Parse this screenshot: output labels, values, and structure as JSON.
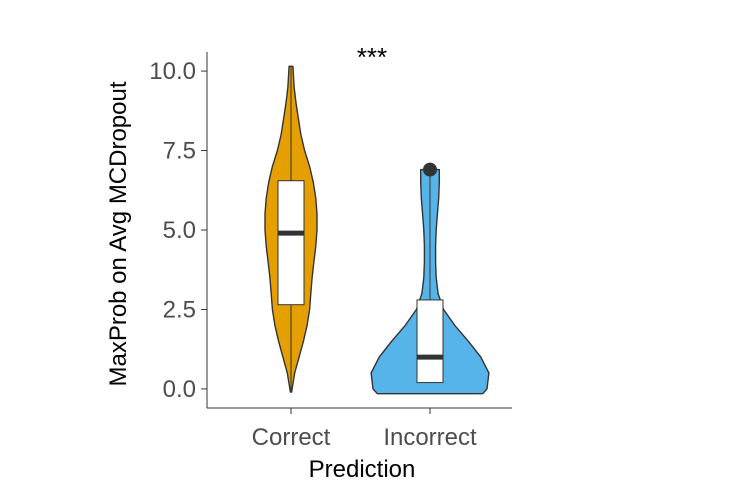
{
  "chart_data": {
    "type": "violin",
    "title": "",
    "xlabel": "Prediction",
    "ylabel": "MaxProb on Avg MCDropout",
    "ylim": [
      -0.6,
      10.6
    ],
    "yticks": [
      "0.0",
      "2.5",
      "5.0",
      "7.5",
      "10.0"
    ],
    "categories": [
      "Correct",
      "Incorrect"
    ],
    "annotation": "***",
    "grid": false,
    "legend": "none",
    "series": [
      {
        "category": "Correct",
        "color": "#E69F00",
        "min": -0.1,
        "q1": 2.65,
        "median": 4.9,
        "q3": 6.55,
        "max": 10.15,
        "outliers": [],
        "density": [
          [
            -0.1,
            0.01
          ],
          [
            0.5,
            0.06
          ],
          [
            1.0,
            0.13
          ],
          [
            1.5,
            0.2
          ],
          [
            2.0,
            0.26
          ],
          [
            2.5,
            0.3
          ],
          [
            3.0,
            0.32
          ],
          [
            3.5,
            0.34
          ],
          [
            4.0,
            0.37
          ],
          [
            4.5,
            0.4
          ],
          [
            5.0,
            0.42
          ],
          [
            5.5,
            0.42
          ],
          [
            6.0,
            0.4
          ],
          [
            6.5,
            0.36
          ],
          [
            7.0,
            0.3
          ],
          [
            7.5,
            0.22
          ],
          [
            8.0,
            0.16
          ],
          [
            8.5,
            0.12
          ],
          [
            9.0,
            0.08
          ],
          [
            9.5,
            0.05
          ],
          [
            10.0,
            0.035
          ],
          [
            10.15,
            0.03
          ]
        ]
      },
      {
        "category": "Incorrect",
        "color": "#56B4E9",
        "min": 0.2,
        "q1": 0.2,
        "median": 1.0,
        "q3": 2.8,
        "max": 6.9,
        "outliers": [
          6.9
        ],
        "density": [
          [
            -0.15,
            0.85
          ],
          [
            0.0,
            0.92
          ],
          [
            0.5,
            0.95
          ],
          [
            1.0,
            0.82
          ],
          [
            1.5,
            0.62
          ],
          [
            2.0,
            0.4
          ],
          [
            2.5,
            0.22
          ],
          [
            3.0,
            0.13
          ],
          [
            3.5,
            0.1
          ],
          [
            4.0,
            0.09
          ],
          [
            4.5,
            0.09
          ],
          [
            5.0,
            0.1
          ],
          [
            5.5,
            0.12
          ],
          [
            6.0,
            0.14
          ],
          [
            6.5,
            0.15
          ],
          [
            6.9,
            0.15
          ]
        ]
      }
    ]
  }
}
